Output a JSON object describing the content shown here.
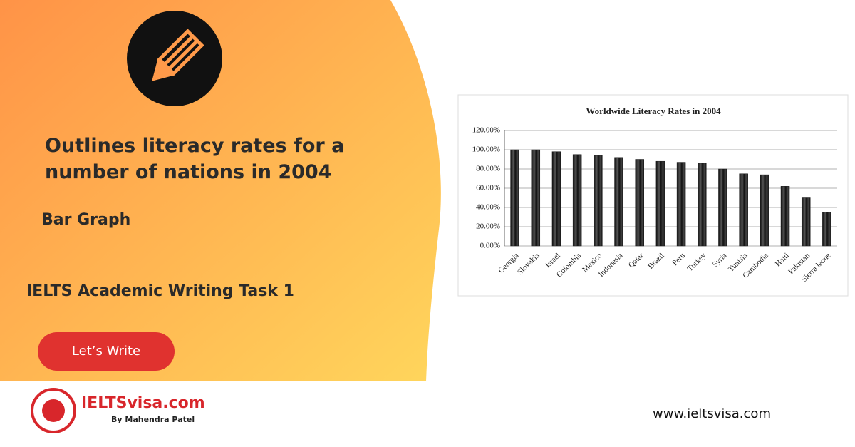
{
  "headline": [
    "Outlines literacy rates for a",
    "number of nations in 2004"
  ],
  "graph_type": "Bar Graph",
  "task": "IELTS Academic Writing Task 1",
  "button": "Let’s Write",
  "brand": {
    "name": "IELTSvisa.com",
    "byline": "By Mahendra Patel"
  },
  "website": "www.ieltsvisa.com",
  "chart_data": {
    "type": "bar",
    "title": "Worldwide Literacy Rates in 2004",
    "categories": [
      "Georgia",
      "Slovakia",
      "Israel",
      "Colombia",
      "Mexico",
      "Indonesia",
      "Qatar",
      "Brazil",
      "Peru",
      "Turkey",
      "Syria",
      "Tunisia",
      "Cambodia",
      "Haiti",
      "Pakistan",
      "Sierra leone"
    ],
    "values": [
      100,
      100,
      98,
      95,
      94,
      92,
      90,
      88,
      87,
      86,
      80,
      75,
      74,
      62,
      50,
      35
    ],
    "color": "#1a1a1a",
    "ylim": [
      0,
      120
    ],
    "yticks": [
      {
        "value": 0,
        "label": "0.00%"
      },
      {
        "value": 20,
        "label": "20.00%"
      },
      {
        "value": 40,
        "label": "40.00%"
      },
      {
        "value": 60,
        "label": "60.00%"
      },
      {
        "value": 80,
        "label": "80.00%"
      },
      {
        "value": 100,
        "label": "100.00%"
      },
      {
        "value": 120,
        "label": "120.00%"
      }
    ],
    "grid": true
  }
}
